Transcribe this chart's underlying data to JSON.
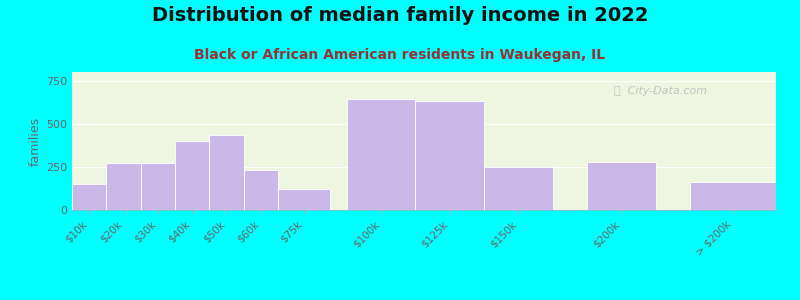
{
  "title": "Distribution of median family income in 2022",
  "subtitle": "Black or African American residents in Waukegan, IL",
  "ylabel": "families",
  "categories": [
    "$10k",
    "$20k",
    "$30k",
    "$40k",
    "$50k",
    "$60k",
    "$75k",
    "$100k",
    "$125k",
    "$150k",
    "$200k",
    "> $200k"
  ],
  "positions": [
    0,
    1,
    2,
    3,
    4,
    5,
    6,
    8,
    10,
    12,
    15,
    18
  ],
  "widths": [
    1,
    1,
    1,
    1,
    1,
    1,
    1.5,
    2,
    2,
    2,
    2,
    2.5
  ],
  "values": [
    150,
    275,
    275,
    400,
    435,
    230,
    120,
    645,
    630,
    250,
    280,
    160
  ],
  "ylim": [
    0,
    800
  ],
  "yticks": [
    0,
    250,
    500,
    750
  ],
  "bar_color": "#c9b8e8",
  "bar_edgecolor": "#ffffff",
  "background_color": "#00ffff",
  "plot_bg_color": "#eef5e0",
  "title_fontsize": 14,
  "subtitle_fontsize": 10,
  "subtitle_color": "#993333",
  "ylabel_color": "#666666",
  "tick_label_color": "#666666",
  "watermark_text": "ⓘ  City-Data.com",
  "watermark_color": "#bbbbbb",
  "grid_color": "#ffffff",
  "title_color": "#111111"
}
